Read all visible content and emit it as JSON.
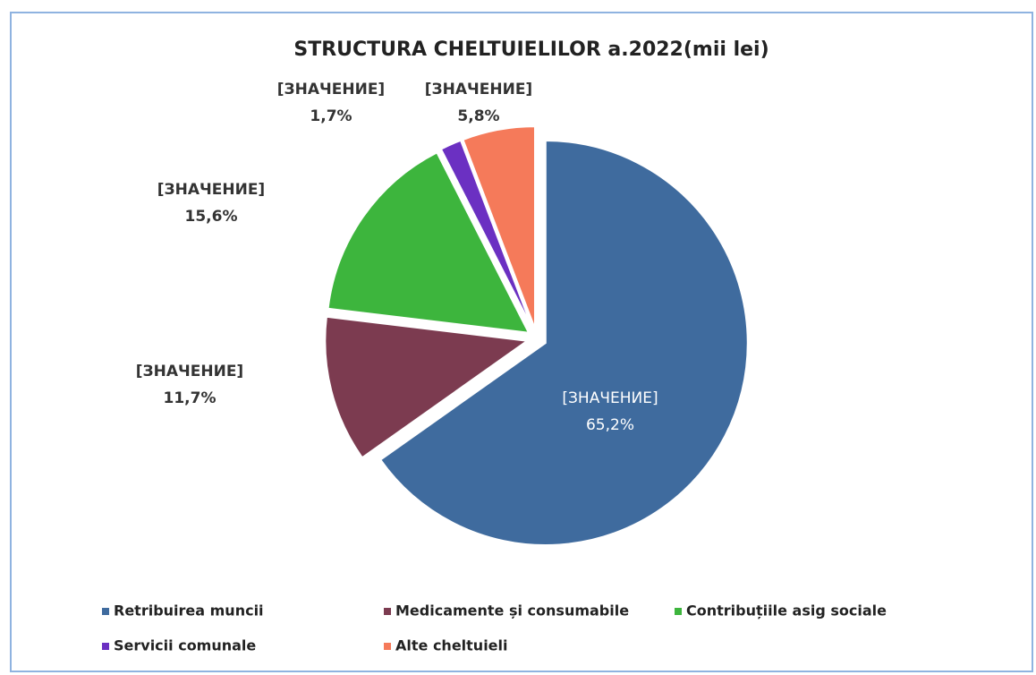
{
  "chart_data": {
    "type": "pie",
    "title": "STRUCTURA CHELTUIELILOR a.2022(mii lei)",
    "categories": [
      "Retribuirea muncii",
      "Medicamente și consumabile",
      "Contribuțiile asig sociale",
      "Servicii comunale",
      "Alte cheltuieli"
    ],
    "values": [
      65.2,
      11.7,
      15.6,
      1.7,
      5.8
    ],
    "value_labels": [
      "65,2%",
      "11,7%",
      "15,6%",
      "1,7%",
      "5,8%"
    ],
    "label_names": [
      "[ЗНАЧЕНИЕ]",
      "[ЗНАЧЕНИЕ]",
      "[ЗНАЧЕНИЕ]",
      "[ЗНАЧЕНИЕ]",
      "[ЗНАЧЕНИЕ]"
    ],
    "colors": [
      "#3f6b9e",
      "#7c3b50",
      "#3db53d",
      "#6b30c2",
      "#f57a5a"
    ],
    "legend": "bottom"
  }
}
